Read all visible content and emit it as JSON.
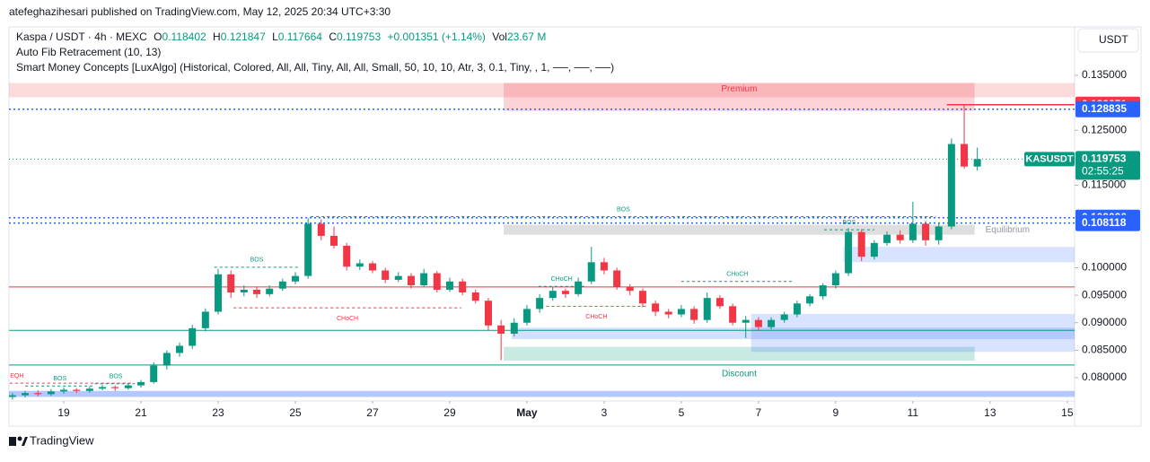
{
  "header": {
    "published": "atefeghazihesari published on TradingView.com, May 12, 2025 20:34 UTC+3:30",
    "brand": "TradingView"
  },
  "chart_data": {
    "type": "candlestick",
    "symbol": "Kaspa / USDT · 4h · MEXC",
    "legend": {
      "o_label": "O",
      "o": 0.118402,
      "h_label": "H",
      "h": 0.121847,
      "l_label": "L",
      "l": 0.117664,
      "c_label": "C",
      "c": 0.119753,
      "change": "+0.001351 (+1.14%)",
      "vol_label": "Vol",
      "vol": "23.67 M"
    },
    "indicators": [
      "Auto Fib Retracement (10, 13)",
      "Smart Money Concepts [LuxAlgo] (Historical, Colored, All, All, Tiny, All, All, Small, 50, 10, 10, Atr, 3, 0.1, Tiny, , 1, ──, ──, ──)"
    ],
    "currency": "USDT",
    "up_color": "#089981",
    "down_color": "#f23645",
    "x": [
      17.67,
      18,
      18.33,
      18.67,
      19,
      19.33,
      19.67,
      20,
      20.33,
      20.67,
      21,
      21.33,
      21.67,
      22,
      22.33,
      22.67,
      23,
      23.33,
      23.67,
      24,
      24.33,
      24.67,
      25,
      25.33,
      25.67,
      26,
      26.33,
      26.67,
      27,
      27.33,
      27.67,
      28,
      28.33,
      28.67,
      29,
      29.33,
      29.67,
      30,
      30.33,
      30.67,
      31,
      31.33,
      31.67,
      32,
      32.33,
      32.67,
      33,
      33.33,
      33.67,
      34,
      34.33,
      34.67,
      35,
      35.33,
      35.67,
      36,
      36.33,
      36.67,
      37,
      37.33,
      37.67,
      38,
      38.33,
      38.67,
      39,
      39.33,
      39.67,
      40,
      40.33,
      40.67,
      41,
      41.33,
      41.67,
      42,
      42.33,
      42.67
    ],
    "candles": [
      [
        0.0765,
        0.0772,
        0.076,
        0.0768
      ],
      [
        0.0768,
        0.0776,
        0.0764,
        0.0772
      ],
      [
        0.0772,
        0.0777,
        0.0766,
        0.077
      ],
      [
        0.077,
        0.0779,
        0.0767,
        0.0775
      ],
      [
        0.0775,
        0.0782,
        0.0771,
        0.0778
      ],
      [
        0.0778,
        0.0781,
        0.0772,
        0.0776
      ],
      [
        0.0776,
        0.0784,
        0.0773,
        0.078
      ],
      [
        0.078,
        0.0787,
        0.0777,
        0.0783
      ],
      [
        0.0783,
        0.0786,
        0.0776,
        0.0781
      ],
      [
        0.0781,
        0.079,
        0.0778,
        0.0786
      ],
      [
        0.0786,
        0.0796,
        0.0782,
        0.0792
      ],
      [
        0.0792,
        0.0828,
        0.0789,
        0.0822
      ],
      [
        0.0822,
        0.085,
        0.0815,
        0.0845
      ],
      [
        0.0845,
        0.0864,
        0.0838,
        0.0858
      ],
      [
        0.0858,
        0.0896,
        0.0852,
        0.089
      ],
      [
        0.089,
        0.0926,
        0.0884,
        0.092
      ],
      [
        0.092,
        0.0998,
        0.0915,
        0.0988
      ],
      [
        0.0988,
        0.0995,
        0.0945,
        0.0955
      ],
      [
        0.0955,
        0.0968,
        0.0948,
        0.096
      ],
      [
        0.096,
        0.0966,
        0.0945,
        0.0952
      ],
      [
        0.0952,
        0.0968,
        0.0948,
        0.0962
      ],
      [
        0.0962,
        0.098,
        0.0958,
        0.0975
      ],
      [
        0.0975,
        0.0992,
        0.097,
        0.0985
      ],
      [
        0.0985,
        0.109,
        0.098,
        0.108
      ],
      [
        0.108,
        0.1088,
        0.105,
        0.1058
      ],
      [
        0.1058,
        0.1075,
        0.1035,
        0.104
      ],
      [
        0.104,
        0.1045,
        0.0995,
        0.1002
      ],
      [
        0.1002,
        0.1015,
        0.0996,
        0.1008
      ],
      [
        0.1008,
        0.1012,
        0.099,
        0.0995
      ],
      [
        0.0995,
        0.1,
        0.0972,
        0.0978
      ],
      [
        0.0978,
        0.0992,
        0.0974,
        0.0985
      ],
      [
        0.0985,
        0.099,
        0.0962,
        0.0968
      ],
      [
        0.0968,
        0.0998,
        0.0964,
        0.099
      ],
      [
        0.099,
        0.0994,
        0.0955,
        0.096
      ],
      [
        0.096,
        0.0982,
        0.0956,
        0.0975
      ],
      [
        0.0975,
        0.098,
        0.095,
        0.0955
      ],
      [
        0.0955,
        0.096,
        0.0935,
        0.094
      ],
      [
        0.094,
        0.0945,
        0.0885,
        0.0895
      ],
      [
        0.0895,
        0.0905,
        0.0832,
        0.088
      ],
      [
        0.088,
        0.0908,
        0.0875,
        0.09
      ],
      [
        0.09,
        0.0932,
        0.0895,
        0.0925
      ],
      [
        0.0925,
        0.0952,
        0.0918,
        0.0945
      ],
      [
        0.0945,
        0.0965,
        0.094,
        0.0958
      ],
      [
        0.0958,
        0.0962,
        0.0945,
        0.0952
      ],
      [
        0.0952,
        0.0982,
        0.0948,
        0.0975
      ],
      [
        0.0975,
        0.1038,
        0.097,
        0.101
      ],
      [
        0.101,
        0.1018,
        0.0988,
        0.0995
      ],
      [
        0.0995,
        0.1,
        0.096,
        0.0965
      ],
      [
        0.0965,
        0.097,
        0.095,
        0.0958
      ],
      [
        0.0958,
        0.0962,
        0.0928,
        0.0935
      ],
      [
        0.0935,
        0.094,
        0.0912,
        0.092
      ],
      [
        0.092,
        0.0925,
        0.0908,
        0.0915
      ],
      [
        0.0915,
        0.0932,
        0.091,
        0.0925
      ],
      [
        0.0925,
        0.093,
        0.0898,
        0.0905
      ],
      [
        0.0905,
        0.0955,
        0.09,
        0.0945
      ],
      [
        0.0945,
        0.095,
        0.0925,
        0.093
      ],
      [
        0.093,
        0.0935,
        0.0895,
        0.09
      ],
      [
        0.09,
        0.0912,
        0.0872,
        0.0905
      ],
      [
        0.0905,
        0.091,
        0.0885,
        0.0892
      ],
      [
        0.0892,
        0.091,
        0.0888,
        0.0905
      ],
      [
        0.0905,
        0.092,
        0.09,
        0.0915
      ],
      [
        0.0915,
        0.094,
        0.091,
        0.0935
      ],
      [
        0.0935,
        0.0952,
        0.093,
        0.0948
      ],
      [
        0.0948,
        0.0972,
        0.0942,
        0.0968
      ],
      [
        0.0968,
        0.0995,
        0.0962,
        0.099
      ],
      [
        0.099,
        0.1072,
        0.0985,
        0.1065
      ],
      [
        0.1065,
        0.107,
        0.1012,
        0.102
      ],
      [
        0.102,
        0.105,
        0.1015,
        0.1045
      ],
      [
        0.1045,
        0.1066,
        0.104,
        0.106
      ],
      [
        0.106,
        0.1068,
        0.1044,
        0.105
      ],
      [
        0.105,
        0.112,
        0.1045,
        0.108
      ],
      [
        0.108,
        0.1085,
        0.104,
        0.105
      ],
      [
        0.105,
        0.1082,
        0.1042,
        0.1075
      ],
      [
        0.1075,
        0.1235,
        0.107,
        0.1225
      ],
      [
        0.1225,
        0.129651,
        0.118,
        0.1184
      ],
      [
        0.118402,
        0.121847,
        0.117664,
        0.119753
      ]
    ],
    "xlim": [
      17.58,
      45.19
    ],
    "xticks": [
      19,
      21,
      23,
      25,
      27,
      29,
      {
        "value": 31,
        "label": "May"
      },
      {
        "value": 33,
        "label": "3"
      },
      {
        "value": 35,
        "label": "5"
      },
      {
        "value": 37,
        "label": "7"
      },
      {
        "value": 39,
        "label": "9"
      },
      {
        "value": 41,
        "label": "11"
      },
      {
        "value": 43,
        "label": "13"
      },
      {
        "value": 45,
        "label": "15"
      }
    ],
    "ylim": [
      0.07576,
      0.1438
    ],
    "yticks": [
      {
        "value": 0.135,
        "label": "0.135000"
      },
      {
        "value": 0.125,
        "label": "0.125000"
      },
      {
        "value": 0.115,
        "label": "0.115000"
      },
      {
        "value": 0.1,
        "label": "0.100000"
      },
      {
        "value": 0.095,
        "label": "0.095000"
      },
      {
        "value": 0.09,
        "label": "0.090000"
      },
      {
        "value": 0.085,
        "label": "0.085000"
      },
      {
        "value": 0.08,
        "label": "0.080000"
      }
    ],
    "price_lines": [
      {
        "value": 0.129651,
        "color": "#f23645",
        "x_from": 41.88
      },
      {
        "value": 0.128835,
        "color": "#2962ff"
      },
      {
        "value": 0.109096,
        "color": "#2962ff"
      },
      {
        "value": 0.108118,
        "color": "#2962ff"
      }
    ],
    "last_price": {
      "name": "KASUSDT",
      "value": 0.119753,
      "countdown": "02:55:25",
      "color": "#089981"
    },
    "zones": [
      {
        "x": [
          17.58,
          45.19
        ],
        "y": [
          0.131,
          0.1336
        ],
        "color": "rgba(242,54,69,0.18)"
      },
      {
        "label": "Premium",
        "label_pos": "top",
        "x": [
          30.4,
          42.6
        ],
        "y": [
          0.1285,
          0.1336
        ],
        "color": "rgba(242,54,69,0.22)"
      },
      {
        "label": "Equilibrium",
        "label_pos": "right",
        "x": [
          30.4,
          42.6
        ],
        "y": [
          0.106,
          0.1078
        ],
        "color": "rgba(160,160,160,0.35)"
      },
      {
        "label": "Discount",
        "label_pos": "bottom",
        "x": [
          30.4,
          42.6
        ],
        "y": [
          0.0831,
          0.0856
        ],
        "color": "rgba(8,153,129,0.22)"
      },
      {
        "x": [
          39.2,
          45.19
        ],
        "y": [
          0.101,
          0.1038
        ],
        "color": "rgba(41,98,255,0.18)"
      },
      {
        "x": [
          36.81,
          45.19
        ],
        "y": [
          0.0847,
          0.0916
        ],
        "color": "rgba(41,98,255,0.18)"
      },
      {
        "x": [
          30.6,
          45.19
        ],
        "y": [
          0.087,
          0.0891
        ],
        "color": "rgba(41,98,255,0.2)"
      },
      {
        "x": [
          17.58,
          45.19
        ],
        "y": [
          0.0765,
          0.0776
        ],
        "color": "rgba(41,98,255,0.35)"
      }
    ],
    "levels": [
      {
        "value": 0.0965,
        "color": "#f23645"
      },
      {
        "value": 0.0886,
        "color": "#089981"
      },
      {
        "value": 0.0823,
        "color": "#089981"
      }
    ],
    "structures": [
      {
        "label": "EQH",
        "x": [
          17.6,
          20.8
        ],
        "y": 0.079,
        "color": "#f23645"
      },
      {
        "label": "BOS",
        "x": [
          18.0,
          19.8
        ],
        "y": 0.0785,
        "color": "#089981"
      },
      {
        "label": "BOS",
        "x": [
          19.8,
          20.9
        ],
        "y": 0.0789,
        "color": "#089981"
      },
      {
        "label": "BOS",
        "x": [
          22.9,
          25.1
        ],
        "y": 0.1001,
        "color": "#089981"
      },
      {
        "label": "CHoCH",
        "x": [
          23.4,
          29.3
        ],
        "y": 0.0927,
        "color": "#f23645"
      },
      {
        "label": "CHoCH",
        "x": [
          31.3,
          32.5
        ],
        "y": 0.0966,
        "color": "#089981"
      },
      {
        "label": "CHoCH",
        "x": [
          31.5,
          34.1
        ],
        "y": 0.093,
        "color": "#f23645"
      },
      {
        "label": "CHoCH",
        "x": [
          35.0,
          37.9
        ],
        "y": 0.0975,
        "color": "#089981"
      },
      {
        "label": "BOS",
        "x": [
          25.4,
          41.6
        ],
        "y": 0.1093,
        "color": "#089981"
      },
      {
        "label": "BOS",
        "x": [
          38.7,
          40.0
        ],
        "y": 0.1069,
        "color": "#089981"
      }
    ]
  }
}
